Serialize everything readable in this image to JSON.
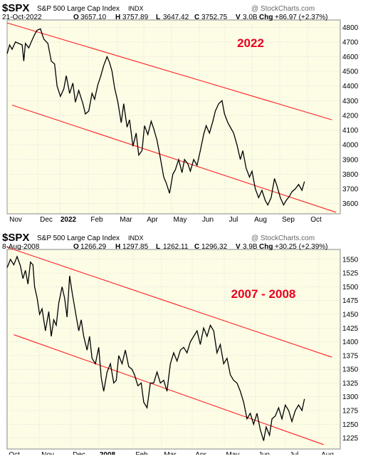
{
  "colors": {
    "plot_bg": "#fdfde6",
    "price_line": "#000000",
    "channel_line": "#ff2020",
    "annotation": "#e8001c",
    "grid": "#c8c8c8",
    "panel_border": "#888888",
    "watermark": "#b0b0b0",
    "ohlc_label": "#1a1a8c"
  },
  "chart_data": [
    {
      "type": "line",
      "ticker": "$SPX",
      "name": "S&P 500 Large Cap Index",
      "exchange": "INDX",
      "date_label": "21-Oct-2022",
      "watermark": "@ StockCharts.com",
      "ohlc": {
        "o_label": "O",
        "o": "3657.10",
        "h_label": "H",
        "h": "3757.89",
        "l_label": "L",
        "l": "3647.42",
        "c_label": "C",
        "c": "3752.75",
        "v_label": "V",
        "v": "3.0B",
        "chg_label": "Chg",
        "chg": "+86.97 (+2.37%)"
      },
      "annotation": "2022",
      "x_labels": [
        "Nov",
        "Dec",
        "2022",
        "Feb",
        "Mar",
        "Apr",
        "May",
        "Jun",
        "Jul",
        "Aug",
        "Sep",
        "Oct"
      ],
      "y_ticks": [
        3600,
        3700,
        3800,
        3900,
        4000,
        4100,
        4200,
        4300,
        4400,
        4500,
        4600,
        4700,
        4800
      ],
      "ylim": [
        3530,
        4850
      ],
      "x": [
        0,
        3,
        6,
        10,
        14,
        18,
        20,
        22,
        26,
        29,
        33,
        36,
        40,
        44,
        49,
        53,
        57,
        60,
        64,
        68,
        71,
        75,
        79,
        82,
        86,
        91,
        94,
        98,
        102,
        105,
        109,
        112,
        116,
        120,
        123,
        126,
        129,
        133,
        137,
        140,
        144,
        147,
        151,
        155,
        158,
        162,
        165,
        169,
        173,
        176,
        180,
        184,
        188,
        191,
        195,
        199,
        202,
        206,
        210,
        213,
        217,
        220,
        224,
        228,
        232,
        236,
        239,
        243,
        247,
        250,
        254,
        258,
        261,
        265,
        269,
        272,
        276,
        280,
        283,
        287,
        291,
        294,
        298,
        302,
        306,
        310,
        313,
        317,
        321,
        324,
        328,
        332,
        335,
        339,
        342,
        346,
        350,
        354,
        357
      ],
      "values": [
        4620,
        4680,
        4650,
        4700,
        4690,
        4680,
        4570,
        4690,
        4660,
        4700,
        4750,
        4780,
        4790,
        4720,
        4690,
        4570,
        4550,
        4400,
        4330,
        4380,
        4470,
        4350,
        4420,
        4290,
        4370,
        4280,
        4210,
        4230,
        4350,
        4310,
        4410,
        4460,
        4540,
        4600,
        4560,
        4500,
        4390,
        4290,
        4150,
        4280,
        4120,
        4170,
        3990,
        4080,
        3930,
        3960,
        4130,
        4070,
        4160,
        4110,
        4030,
        3910,
        3780,
        3740,
        3670,
        3800,
        3830,
        3900,
        3810,
        3900,
        3870,
        3820,
        3900,
        3860,
        3960,
        4070,
        4130,
        4080,
        4160,
        4230,
        4280,
        4300,
        4210,
        4150,
        4110,
        4080,
        4000,
        3900,
        3960,
        3840,
        3780,
        3820,
        3700,
        3640,
        3690,
        3620,
        3590,
        3640,
        3770,
        3720,
        3640,
        3590,
        3620,
        3650,
        3680,
        3700,
        3730,
        3690,
        3750
      ],
      "channel_lines": [
        {
          "x": [
            0,
            390
          ],
          "y": [
            4830,
            4170
          ]
        },
        {
          "x": [
            6,
            395
          ],
          "y": [
            4270,
            3540
          ]
        }
      ]
    },
    {
      "type": "line",
      "ticker": "$SPX",
      "name": "S&P 500 Large Cap Index",
      "exchange": "INDX",
      "date_label": "8-Aug-2008",
      "watermark": "@ StockCharts.com",
      "ohlc": {
        "o_label": "O",
        "o": "1266.29",
        "h_label": "H",
        "h": "1297.85",
        "l_label": "L",
        "l": "1262.11",
        "c_label": "C",
        "c": "1296.32",
        "v_label": "V",
        "v": "3.9B",
        "chg_label": "Chg",
        "chg": "+30.25 (+2.39%)"
      },
      "annotation": "2007 - 2008",
      "x_labels": [
        "Oct",
        "Nov",
        "Dec",
        "2008",
        "Feb",
        "Mar",
        "Apr",
        "May",
        "Jun",
        "Jul",
        "Aug"
      ],
      "y_ticks": [
        1225,
        1250,
        1275,
        1300,
        1325,
        1350,
        1375,
        1400,
        1425,
        1450,
        1475,
        1500,
        1525,
        1550
      ],
      "ylim": [
        1205,
        1568
      ],
      "x": [
        0,
        4,
        8,
        12,
        16,
        19,
        22,
        25,
        28,
        31,
        33,
        36,
        39,
        42,
        46,
        50,
        53,
        56,
        59,
        62,
        66,
        69,
        72,
        75,
        78,
        82,
        86,
        89,
        92,
        96,
        99,
        102,
        106,
        110,
        113,
        116,
        120,
        124,
        128,
        131,
        134,
        138,
        142,
        146,
        150,
        153,
        157,
        161,
        164,
        168,
        172,
        176,
        180,
        184,
        188,
        192,
        196,
        200,
        204,
        208,
        212,
        216,
        220,
        224,
        228,
        232,
        236,
        240,
        244,
        248,
        252,
        256,
        260,
        264,
        268,
        272,
        276,
        280,
        284,
        288,
        292,
        296,
        300,
        304,
        308,
        311,
        315,
        318,
        322,
        326,
        330,
        334,
        338,
        342,
        346,
        350,
        354,
        357
      ],
      "values": [
        1535,
        1550,
        1540,
        1555,
        1538,
        1515,
        1530,
        1505,
        1545,
        1540,
        1500,
        1480,
        1450,
        1460,
        1420,
        1455,
        1410,
        1440,
        1430,
        1470,
        1500,
        1480,
        1445,
        1520,
        1490,
        1455,
        1420,
        1440,
        1410,
        1385,
        1410,
        1370,
        1360,
        1390,
        1335,
        1310,
        1345,
        1360,
        1325,
        1330,
        1375,
        1360,
        1385,
        1355,
        1350,
        1340,
        1320,
        1325,
        1290,
        1280,
        1325,
        1325,
        1345,
        1325,
        1330,
        1310,
        1360,
        1380,
        1365,
        1385,
        1390,
        1380,
        1400,
        1410,
        1420,
        1395,
        1425,
        1410,
        1430,
        1420,
        1380,
        1395,
        1360,
        1370,
        1340,
        1330,
        1325,
        1310,
        1290,
        1260,
        1270,
        1250,
        1270,
        1240,
        1220,
        1245,
        1230,
        1260,
        1265,
        1280,
        1260,
        1285,
        1275,
        1255,
        1275,
        1285,
        1275,
        1296
      ],
      "channel_lines": [
        {
          "x": [
            0,
            390
          ],
          "y": [
            1572,
            1372
          ]
        },
        {
          "x": [
            8,
            380
          ],
          "y": [
            1413,
            1213
          ]
        }
      ]
    }
  ]
}
